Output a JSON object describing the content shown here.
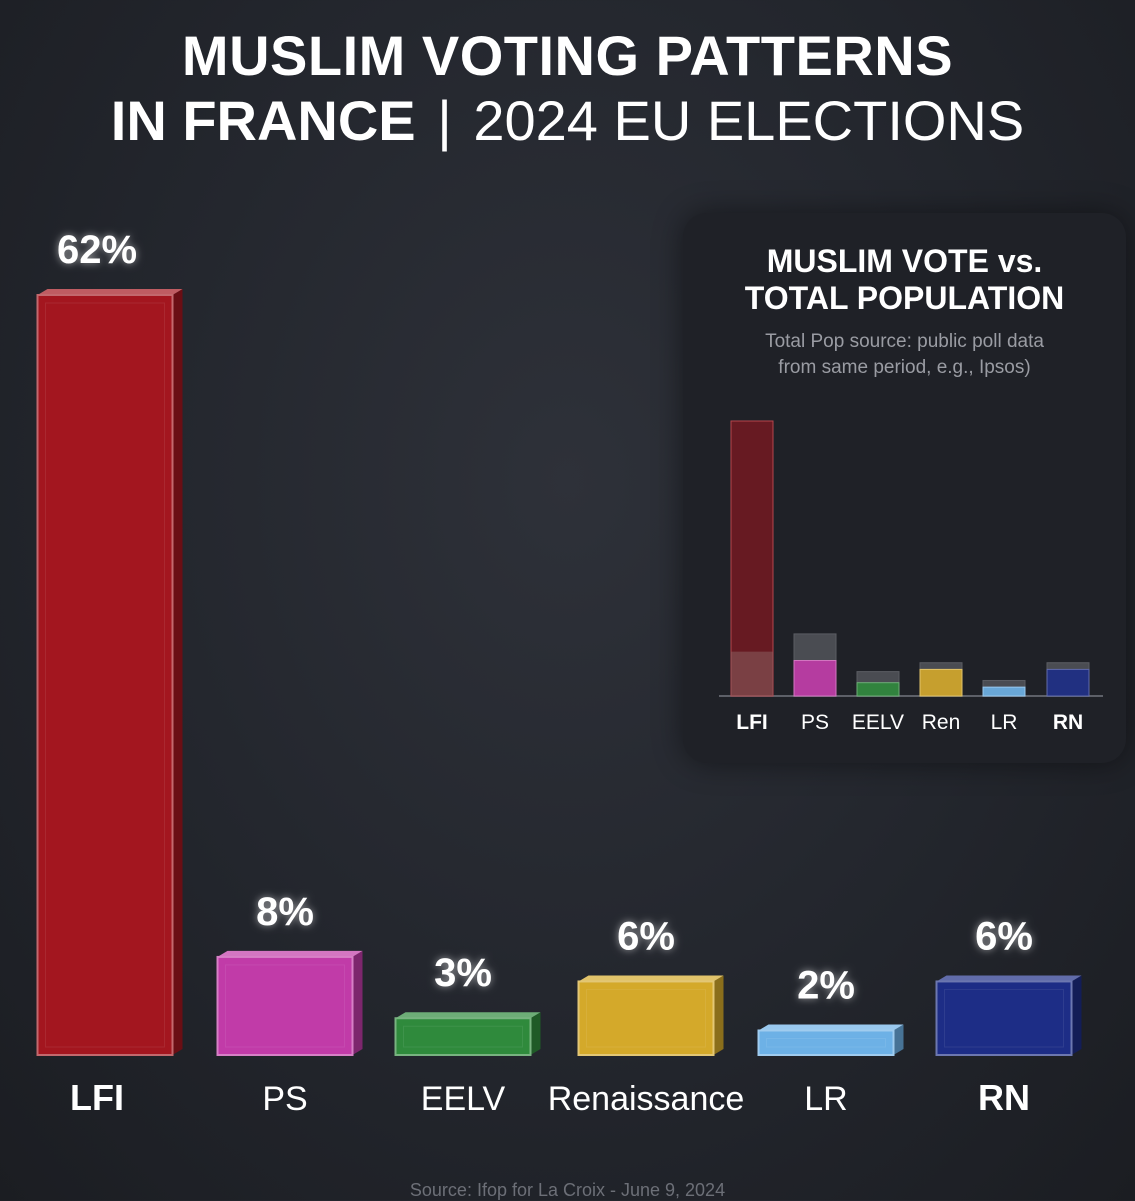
{
  "title": {
    "line1": "MUSLIM VOTING PATTERNS",
    "line2_bold": "IN FRANCE",
    "separator": "|",
    "line2_light": "2024 EU ELECTIONS"
  },
  "chart_data": [
    {
      "type": "bar",
      "title": "MUSLIM VOTING PATTERNS IN FRANCE | 2024 EU ELECTIONS",
      "categories": [
        "LFI",
        "PS",
        "EELV",
        "Renaissance",
        "LR",
        "RN"
      ],
      "values": [
        62,
        8,
        3,
        6,
        2,
        6
      ],
      "value_labels": [
        "62%",
        "8%",
        "3%",
        "6%",
        "2%",
        "6%"
      ],
      "bold_categories": [
        "LFI",
        "RN"
      ],
      "colors": [
        "#a3161f",
        "#c13ba8",
        "#2f8a3c",
        "#d4a92a",
        "#6db1e6",
        "#1d2d86"
      ],
      "grid": false
    },
    {
      "type": "bar",
      "title": "MUSLIM VOTE vs. TOTAL POPULATION",
      "subtitle": "Total Pop source: public poll data from same period, e.g., Ipsos)",
      "subtitle_lines": [
        "Total Pop source: public poll data",
        "from same period, e.g., Ipsos)"
      ],
      "categories": [
        "LFI",
        "PS",
        "EELV",
        "Ren",
        "LR",
        "RN"
      ],
      "bold_categories": [
        "LFI",
        "RN"
      ],
      "series": [
        {
          "values": [
            62,
            8,
            3,
            6,
            2,
            6
          ]
        },
        {
          "values": [
            10,
            14,
            5.5,
            7.5,
            3.5,
            7.5
          ]
        }
      ],
      "colors": [
        "#a3161f",
        "#c13ba8",
        "#2f8a3c",
        "#d4a92a",
        "#6db1e6",
        "#1d2d86"
      ],
      "grid": false
    }
  ],
  "source": "Source: Ifop for La Croix - June 9, 2024"
}
